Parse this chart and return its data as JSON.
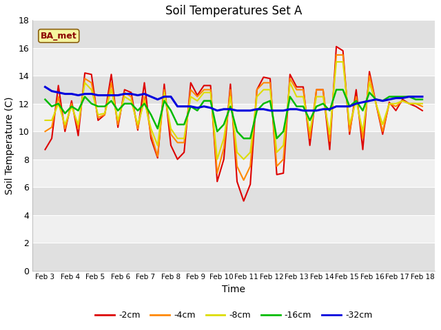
{
  "title": "Soil Temperatures Set A",
  "xlabel": "Time",
  "ylabel": "Soil Temperature (C)",
  "ylim": [
    0,
    18
  ],
  "yticks": [
    0,
    2,
    4,
    6,
    8,
    10,
    12,
    14,
    16,
    18
  ],
  "annotation": "BA_met",
  "legend_labels": [
    "-2cm",
    "-4cm",
    "-8cm",
    "-16cm",
    "-32cm"
  ],
  "legend_colors": [
    "#dd0000",
    "#ff8800",
    "#dddd00",
    "#00bb00",
    "#0000dd"
  ],
  "line_widths": [
    1.5,
    1.5,
    1.5,
    1.8,
    2.2
  ],
  "figsize": [
    6.4,
    4.8
  ],
  "dpi": 100,
  "x_labels": [
    "Feb 3",
    "Feb 4",
    "Feb 5",
    "Feb 6",
    "Feb 7",
    "Feb 8",
    "Feb 9",
    "Feb 10",
    "Feb 11",
    "Feb 12",
    "Feb 13",
    "Feb 14",
    "Feb 15",
    "Feb 16",
    "Feb 17",
    "Feb 18"
  ],
  "n_ticks": 16,
  "series": {
    "neg2cm": [
      8.7,
      9.5,
      13.3,
      10.0,
      12.2,
      9.7,
      14.2,
      14.1,
      10.8,
      11.2,
      14.1,
      10.3,
      13.0,
      12.8,
      10.1,
      13.5,
      9.5,
      8.1,
      13.4,
      9.0,
      8.0,
      8.5,
      13.5,
      12.6,
      13.3,
      13.3,
      6.4,
      8.0,
      13.4,
      6.4,
      5.0,
      6.2,
      13.0,
      13.9,
      13.8,
      6.9,
      7.0,
      14.1,
      13.2,
      13.2,
      9.0,
      13.0,
      13.0,
      8.7,
      16.1,
      15.8,
      9.8,
      13.0,
      8.7,
      14.3,
      12.0,
      9.8,
      12.1,
      11.5,
      12.3,
      12.0,
      11.8,
      11.5
    ],
    "neg4cm": [
      10.0,
      10.3,
      12.5,
      10.2,
      12.0,
      10.2,
      13.8,
      13.5,
      11.0,
      11.2,
      13.5,
      10.5,
      12.8,
      12.5,
      10.2,
      12.5,
      9.8,
      8.2,
      13.0,
      9.8,
      9.2,
      9.2,
      13.0,
      12.5,
      13.0,
      13.0,
      7.0,
      8.8,
      13.0,
      7.5,
      6.5,
      7.5,
      13.0,
      13.5,
      13.5,
      7.5,
      8.0,
      13.8,
      13.0,
      13.0,
      9.5,
      13.0,
      13.0,
      9.3,
      15.5,
      15.5,
      10.0,
      12.5,
      9.5,
      14.0,
      12.0,
      10.0,
      12.0,
      11.8,
      12.2,
      12.0,
      12.0,
      11.8
    ],
    "neg8cm": [
      10.8,
      10.8,
      12.0,
      10.5,
      11.8,
      10.5,
      13.5,
      13.0,
      11.2,
      11.3,
      13.0,
      10.8,
      12.5,
      12.2,
      10.5,
      12.2,
      10.2,
      9.0,
      12.8,
      10.2,
      9.5,
      9.5,
      12.5,
      12.2,
      12.8,
      12.8,
      8.0,
      9.5,
      12.5,
      8.5,
      8.0,
      8.5,
      12.5,
      13.0,
      13.0,
      8.5,
      9.0,
      13.5,
      12.5,
      12.5,
      10.0,
      12.5,
      12.5,
      9.8,
      15.0,
      15.0,
      10.5,
      12.2,
      10.0,
      13.5,
      12.0,
      10.5,
      12.0,
      12.0,
      12.2,
      12.0,
      12.0,
      12.0
    ],
    "neg16cm": [
      12.3,
      11.8,
      12.0,
      11.3,
      11.8,
      11.5,
      12.5,
      12.0,
      11.8,
      11.8,
      12.2,
      11.5,
      12.0,
      12.0,
      11.5,
      12.0,
      11.2,
      10.2,
      12.2,
      11.5,
      10.5,
      10.5,
      11.8,
      11.5,
      12.2,
      12.2,
      10.0,
      10.5,
      11.8,
      10.0,
      9.5,
      9.5,
      11.5,
      12.0,
      12.2,
      9.5,
      10.0,
      12.5,
      11.8,
      11.8,
      10.8,
      11.8,
      12.0,
      11.5,
      13.0,
      13.0,
      11.8,
      12.2,
      11.5,
      12.8,
      12.3,
      12.2,
      12.5,
      12.5,
      12.5,
      12.5,
      12.3,
      12.3
    ],
    "neg32cm": [
      13.2,
      12.9,
      12.8,
      12.7,
      12.7,
      12.6,
      12.7,
      12.7,
      12.6,
      12.6,
      12.6,
      12.6,
      12.7,
      12.7,
      12.6,
      12.7,
      12.5,
      12.3,
      12.5,
      12.5,
      11.8,
      11.8,
      11.8,
      11.7,
      11.8,
      11.7,
      11.5,
      11.6,
      11.6,
      11.5,
      11.5,
      11.5,
      11.6,
      11.6,
      11.5,
      11.5,
      11.5,
      11.6,
      11.6,
      11.5,
      11.5,
      11.5,
      11.6,
      11.6,
      11.8,
      11.8,
      11.8,
      12.0,
      12.1,
      12.2,
      12.3,
      12.2,
      12.3,
      12.4,
      12.4,
      12.5,
      12.5,
      12.5
    ]
  }
}
